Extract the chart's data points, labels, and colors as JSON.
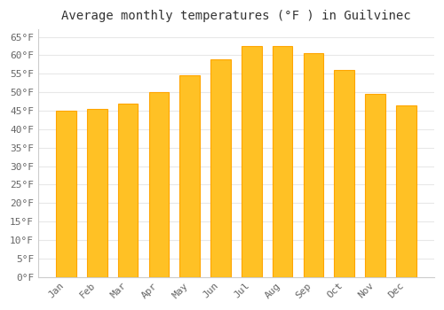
{
  "title": "Average monthly temperatures (°F ) in Guilvinec",
  "months": [
    "Jan",
    "Feb",
    "Mar",
    "Apr",
    "May",
    "Jun",
    "Jul",
    "Aug",
    "Sep",
    "Oct",
    "Nov",
    "Dec"
  ],
  "values": [
    45,
    45.5,
    47,
    50,
    54.5,
    59,
    62.5,
    62.5,
    60.5,
    56,
    49.5,
    46.5
  ],
  "bar_color": "#FFC125",
  "bar_edge_color": "#FFA500",
  "ylim": [
    0,
    67
  ],
  "yticks": [
    0,
    5,
    10,
    15,
    20,
    25,
    30,
    35,
    40,
    45,
    50,
    55,
    60,
    65
  ],
  "ytick_labels": [
    "0°F",
    "5°F",
    "10°F",
    "15°F",
    "20°F",
    "25°F",
    "30°F",
    "35°F",
    "40°F",
    "45°F",
    "50°F",
    "55°F",
    "60°F",
    "65°F"
  ],
  "background_color": "#ffffff",
  "grid_color": "#e8e8e8",
  "title_fontsize": 10,
  "tick_fontsize": 8,
  "font_family": "monospace",
  "bar_width": 0.65,
  "spine_color": "#cccccc"
}
